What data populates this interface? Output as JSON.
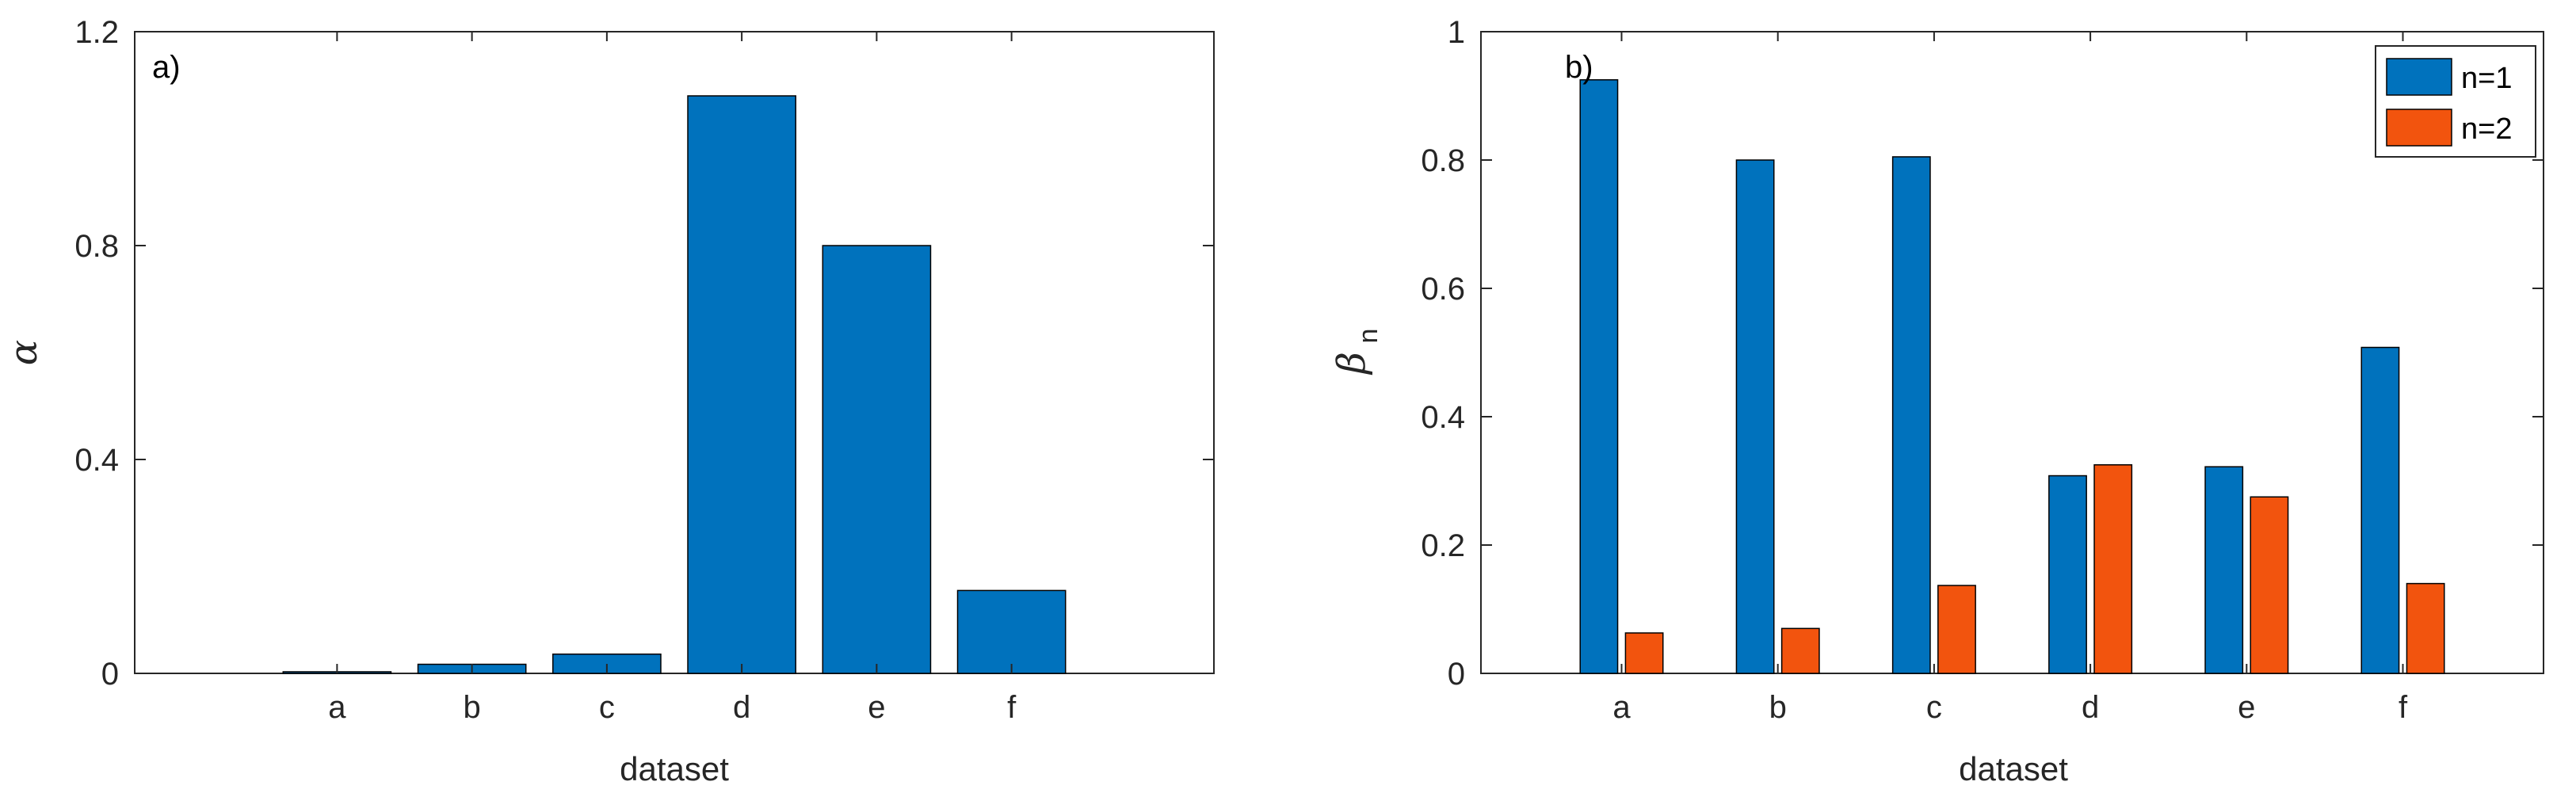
{
  "chart_data": [
    {
      "type": "bar",
      "panel_label": "a)",
      "categories": [
        "a",
        "b",
        "c",
        "d",
        "e",
        "f"
      ],
      "values": [
        0.003,
        0.017,
        0.036,
        1.08,
        0.8,
        0.155
      ],
      "xlabel": "dataset",
      "ylabel": "α",
      "ylim": [
        0,
        1.2
      ],
      "yticks": [
        "0",
        "0.4",
        "0.8",
        "1.2"
      ],
      "ytick_values": [
        0,
        0.4,
        0.8,
        1.2
      ],
      "grid": false,
      "color": "#0072BD"
    },
    {
      "type": "bar",
      "panel_label": "b)",
      "categories": [
        "a",
        "b",
        "c",
        "d",
        "e",
        "f"
      ],
      "series": [
        {
          "name": "n=1",
          "values": [
            0.925,
            0.8,
            0.805,
            0.308,
            0.322,
            0.508
          ],
          "color": "#0072BD"
        },
        {
          "name": "n=2",
          "values": [
            0.063,
            0.07,
            0.137,
            0.325,
            0.275,
            0.14
          ],
          "color": "#F2540E"
        }
      ],
      "xlabel": "dataset",
      "ylabel": "β",
      "ylabel_subscript": "n",
      "ylim": [
        0,
        1
      ],
      "yticks": [
        "0",
        "0.2",
        "0.4",
        "0.6",
        "0.8",
        "1"
      ],
      "ytick_values": [
        0,
        0.2,
        0.4,
        0.6,
        0.8,
        1
      ],
      "grid": false,
      "legend_position": "top-right"
    }
  ]
}
